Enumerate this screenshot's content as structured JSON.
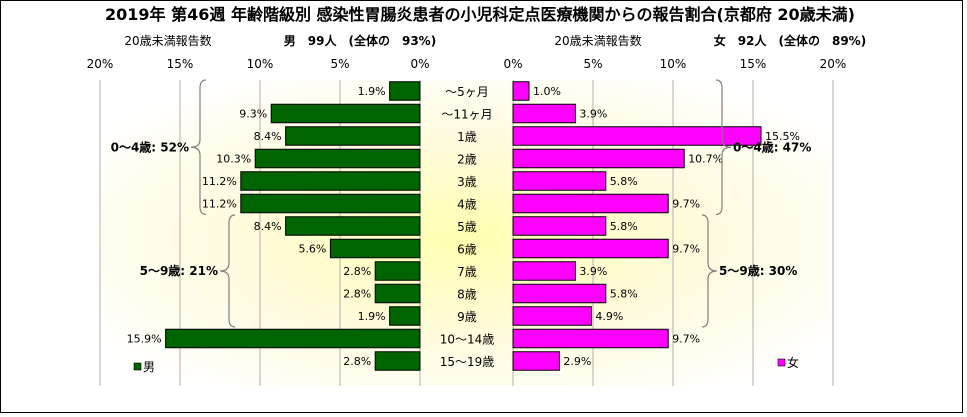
{
  "title": "2019年 第46週 年齢階級別 感染性胃腸炎患者の小児科定点医療機関からの報告割合(京都府 20歳未満)",
  "colors": {
    "male": "#006400",
    "female": "#ff00ff",
    "bar_outline": "#000000",
    "background_glow": "#ffffb0"
  },
  "chart_data": [
    {
      "type": "bar",
      "orientation": "horizontal",
      "direction": "right-to-left",
      "header_left": "20歳未満報告数",
      "header_right": "男　99人　(全体の　93%)",
      "categories": [
        "～5ヶ月",
        "～11ヶ月",
        "1歳",
        "2歳",
        "3歳",
        "4歳",
        "5歳",
        "6歳",
        "7歳",
        "8歳",
        "9歳",
        "10～14歳",
        "15～19歳"
      ],
      "series": [
        {
          "name": "男",
          "values": [
            1.9,
            9.3,
            8.4,
            10.3,
            11.2,
            11.2,
            8.4,
            5.6,
            2.8,
            2.8,
            1.9,
            15.9,
            2.8
          ],
          "labels": [
            "1.9%",
            "9.3%",
            "8.4%",
            "10.3%",
            "11.2%",
            "11.2%",
            "8.4%",
            "5.6%",
            "2.8%",
            "2.8%",
            "1.9%",
            "15.9%",
            "2.8%"
          ]
        }
      ],
      "xlim": [
        0,
        20
      ],
      "ticks": [
        "20%",
        "15%",
        "10%",
        "5%",
        "0%"
      ],
      "grid": true,
      "legend": "bottom-left",
      "brackets": [
        {
          "label": "0～4歳: 52%",
          "from": 0,
          "to": 5
        },
        {
          "label": "5～9歳: 21%",
          "from": 6,
          "to": 10
        }
      ]
    },
    {
      "type": "bar",
      "orientation": "horizontal",
      "direction": "left-to-right",
      "header_left": "20歳未満報告数",
      "header_right": "女　92人　(全体の　89%)",
      "categories": [
        "～5ヶ月",
        "～11ヶ月",
        "1歳",
        "2歳",
        "3歳",
        "4歳",
        "5歳",
        "6歳",
        "7歳",
        "8歳",
        "9歳",
        "10～14歳",
        "15～19歳"
      ],
      "series": [
        {
          "name": "女",
          "values": [
            1.0,
            3.9,
            15.5,
            10.7,
            5.8,
            9.7,
            5.8,
            9.7,
            3.9,
            5.8,
            4.9,
            9.7,
            2.9
          ],
          "labels": [
            "1.0%",
            "3.9%",
            "15.5%",
            "10.7%",
            "5.8%",
            "9.7%",
            "5.8%",
            "9.7%",
            "3.9%",
            "5.8%",
            "4.9%",
            "9.7%",
            "2.9%"
          ]
        }
      ],
      "xlim": [
        0,
        20
      ],
      "ticks": [
        "0%",
        "5%",
        "10%",
        "15%",
        "20%"
      ],
      "grid": true,
      "legend": "bottom-right",
      "brackets": [
        {
          "label": "0～4歳: 47%",
          "from": 0,
          "to": 5
        },
        {
          "label": "5～9歳: 30%",
          "from": 6,
          "to": 10
        }
      ]
    }
  ]
}
